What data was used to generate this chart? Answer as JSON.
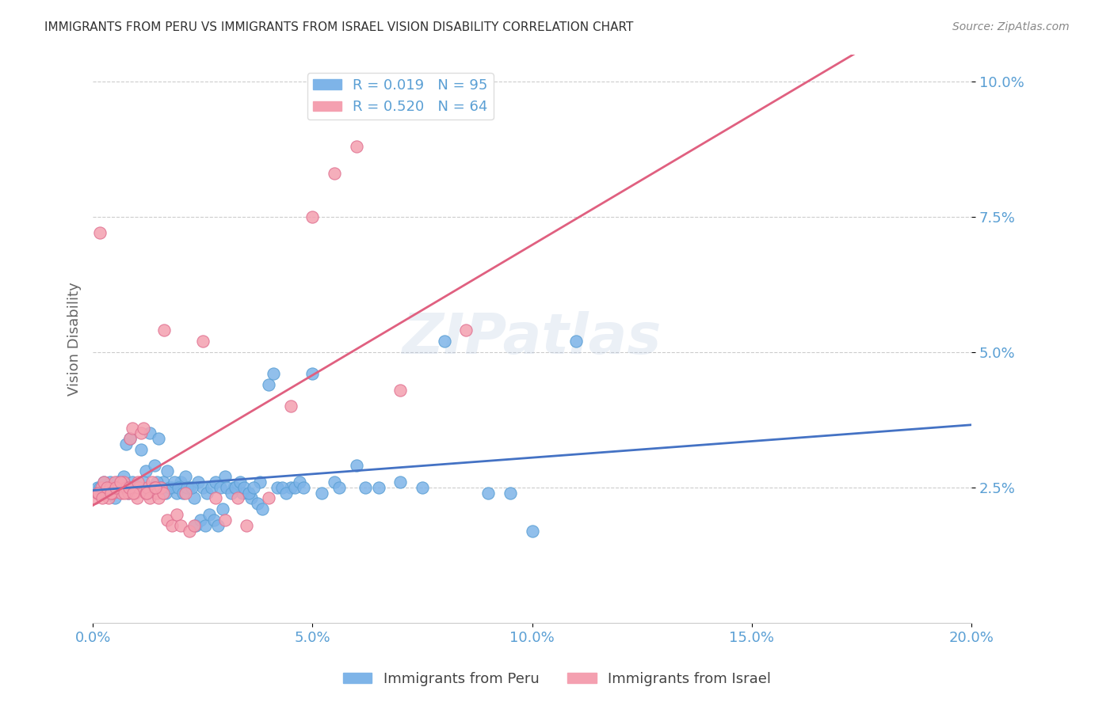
{
  "title": "IMMIGRANTS FROM PERU VS IMMIGRANTS FROM ISRAEL VISION DISABILITY CORRELATION CHART",
  "source": "Source: ZipAtlas.com",
  "ylabel": "Vision Disability",
  "xlabel_ticks": [
    "0.0%",
    "5.0%",
    "10.0%",
    "15.0%",
    "20.0%"
  ],
  "xlabel_vals": [
    0.0,
    5.0,
    10.0,
    15.0,
    20.0
  ],
  "ytick_labels": [
    "2.5%",
    "5.0%",
    "7.5%",
    "10.0%"
  ],
  "ytick_vals": [
    2.5,
    5.0,
    7.5,
    10.0
  ],
  "xlim": [
    0.0,
    20.0
  ],
  "ylim": [
    0.0,
    10.5
  ],
  "peru_color": "#7EB4E8",
  "peru_edge": "#5A9FD4",
  "israel_color": "#F4A0B0",
  "israel_edge": "#E07090",
  "peru_line_color": "#4472C4",
  "israel_line_color": "#E06080",
  "peru_R": 0.019,
  "peru_N": 95,
  "israel_R": 0.52,
  "israel_N": 64,
  "legend_peru_label": "R = 0.019   N = 95",
  "legend_israel_label": "R = 0.520   N = 64",
  "bottom_legend_peru": "Immigrants from Peru",
  "bottom_legend_israel": "Immigrants from Israel",
  "grid_color": "#CCCCCC",
  "background_color": "#FFFFFF",
  "title_color": "#333333",
  "axis_label_color": "#5A9FD4",
  "watermark": "ZIPatlas",
  "peru_x": [
    0.1,
    0.2,
    0.3,
    0.4,
    0.5,
    0.6,
    0.7,
    0.8,
    0.9,
    1.0,
    1.1,
    1.2,
    1.3,
    1.4,
    1.5,
    1.6,
    1.7,
    1.8,
    1.9,
    2.0,
    2.1,
    2.2,
    2.3,
    2.4,
    2.5,
    2.6,
    2.7,
    2.8,
    2.9,
    3.0,
    3.2,
    3.4,
    3.6,
    3.8,
    4.0,
    4.5,
    5.0,
    5.5,
    6.0,
    6.5,
    7.0,
    7.5,
    8.0,
    9.0,
    10.0,
    11.0,
    0.15,
    0.25,
    0.35,
    0.45,
    0.55,
    0.65,
    0.75,
    0.85,
    0.95,
    1.05,
    1.15,
    1.25,
    1.35,
    1.45,
    1.55,
    1.65,
    1.75,
    1.85,
    1.95,
    2.05,
    2.15,
    2.25,
    2.35,
    2.45,
    2.55,
    2.65,
    2.75,
    2.85,
    2.95,
    3.05,
    3.15,
    3.25,
    3.35,
    3.45,
    3.55,
    3.65,
    3.75,
    3.85,
    4.1,
    4.2,
    4.3,
    4.4,
    4.6,
    4.7,
    4.8,
    5.2,
    5.6,
    6.2,
    9.5
  ],
  "peru_y": [
    2.5,
    2.4,
    2.5,
    2.6,
    2.3,
    2.5,
    2.7,
    2.4,
    2.6,
    2.5,
    3.2,
    2.8,
    3.5,
    2.9,
    3.4,
    2.6,
    2.8,
    2.5,
    2.4,
    2.6,
    2.7,
    2.5,
    2.3,
    2.6,
    2.5,
    2.4,
    2.5,
    2.6,
    2.5,
    2.7,
    2.5,
    2.4,
    2.3,
    2.6,
    4.4,
    2.5,
    4.6,
    2.6,
    2.9,
    2.5,
    2.6,
    2.5,
    5.2,
    2.4,
    1.7,
    5.2,
    2.5,
    2.6,
    2.4,
    2.5,
    2.6,
    2.5,
    3.3,
    3.4,
    2.5,
    2.5,
    2.6,
    2.4,
    2.5,
    2.6,
    2.5,
    2.4,
    2.5,
    2.6,
    2.5,
    2.4,
    2.5,
    2.5,
    1.8,
    1.9,
    1.8,
    2.0,
    1.9,
    1.8,
    2.1,
    2.5,
    2.4,
    2.5,
    2.6,
    2.5,
    2.4,
    2.5,
    2.2,
    2.1,
    4.6,
    2.5,
    2.5,
    2.4,
    2.5,
    2.6,
    2.5,
    2.4,
    2.5,
    2.5,
    2.4
  ],
  "israel_x": [
    0.05,
    0.1,
    0.15,
    0.2,
    0.25,
    0.3,
    0.35,
    0.4,
    0.45,
    0.5,
    0.55,
    0.6,
    0.65,
    0.7,
    0.75,
    0.8,
    0.85,
    0.9,
    0.95,
    1.0,
    1.05,
    1.1,
    1.15,
    1.2,
    1.25,
    1.3,
    1.35,
    1.4,
    1.45,
    1.5,
    1.55,
    1.6,
    1.7,
    1.8,
    1.9,
    2.0,
    2.1,
    2.2,
    2.3,
    2.5,
    2.8,
    3.0,
    3.3,
    3.5,
    4.0,
    4.5,
    5.0,
    5.5,
    6.0,
    7.0,
    8.5,
    0.12,
    0.22,
    0.32,
    0.42,
    0.52,
    0.62,
    0.72,
    0.82,
    0.92,
    1.02,
    1.22,
    1.42,
    1.62
  ],
  "israel_y": [
    2.3,
    2.4,
    7.2,
    2.5,
    2.6,
    2.4,
    2.3,
    2.5,
    2.4,
    2.6,
    2.5,
    2.5,
    2.4,
    2.6,
    2.5,
    2.4,
    3.4,
    3.6,
    2.4,
    2.3,
    2.5,
    3.5,
    3.6,
    2.4,
    2.5,
    2.3,
    2.6,
    2.5,
    2.4,
    2.3,
    2.5,
    2.4,
    1.9,
    1.8,
    2.0,
    1.8,
    2.4,
    1.7,
    1.8,
    5.2,
    2.3,
    1.9,
    2.3,
    1.8,
    2.3,
    4.0,
    7.5,
    8.3,
    8.8,
    4.3,
    5.4,
    2.4,
    2.3,
    2.5,
    2.4,
    2.5,
    2.6,
    2.4,
    2.5,
    2.4,
    2.6,
    2.4,
    2.5,
    5.4
  ]
}
